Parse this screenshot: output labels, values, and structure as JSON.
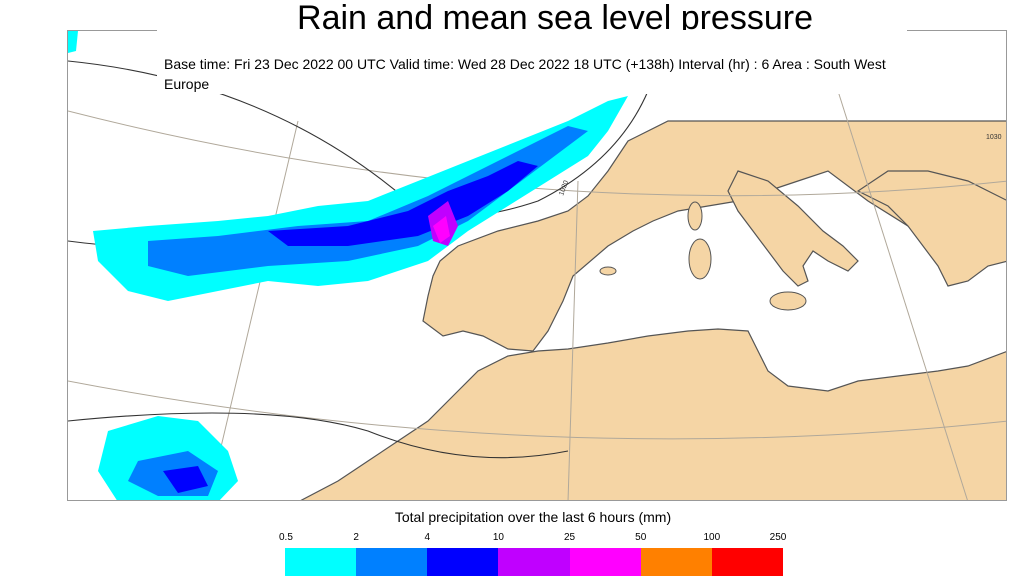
{
  "map": {
    "title": "Rain and mean sea level pressure",
    "info": "Base time: Fri 23 Dec 2022 00 UTC Valid time: Wed 28 Dec 2022 18 UTC (+138h) Interval (hr) : 6 Area : South West Europe",
    "area": "South West Europe",
    "isobar_labels": [
      "1020",
      "1030"
    ],
    "colors": {
      "land": "#f5d5a5",
      "sea": "#ffffff",
      "coastline": "#555555",
      "isobar": "#333333",
      "graticule": "#b0a89a"
    }
  },
  "legend": {
    "title": "Total precipitation over the last 6 hours (mm)",
    "ticks": [
      "0.5",
      "2",
      "4",
      "10",
      "25",
      "50",
      "100",
      "250"
    ],
    "bins": [
      {
        "from": "0.5",
        "to": "2",
        "color": "#00ffff"
      },
      {
        "from": "2",
        "to": "4",
        "color": "#0080ff"
      },
      {
        "from": "4",
        "to": "10",
        "color": "#0000ff"
      },
      {
        "from": "10",
        "to": "25",
        "color": "#c000ff"
      },
      {
        "from": "25",
        "to": "50",
        "color": "#ff00ff"
      },
      {
        "from": "50",
        "to": "100",
        "color": "#ff8000"
      },
      {
        "from": "100",
        "to": "250",
        "color": "#ff0000"
      }
    ]
  }
}
